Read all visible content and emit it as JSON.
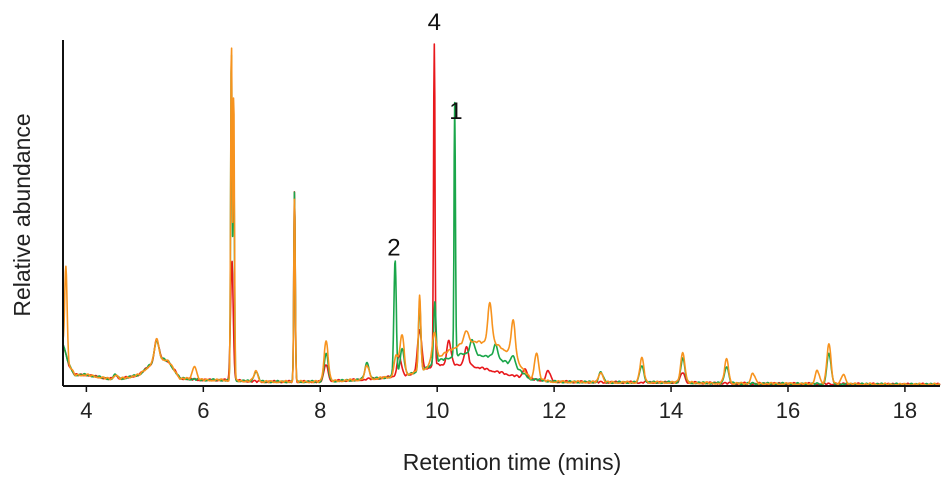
{
  "chart_data": {
    "type": "line",
    "xlabel": "Retention time (mins)",
    "ylabel": "Relative abundance",
    "xlim": [
      3.6,
      18.6
    ],
    "ylim": [
      0,
      100
    ],
    "x_ticks": [
      4,
      6,
      8,
      10,
      12,
      14,
      16,
      18
    ],
    "x_tick_labels": [
      "4",
      "6",
      "8",
      "10",
      "12",
      "14",
      "16",
      "18"
    ],
    "grid": false,
    "legend": "none",
    "baseline": [
      [
        3.6,
        12
      ],
      [
        3.7,
        6
      ],
      [
        3.8,
        3
      ],
      [
        4,
        3
      ],
      [
        4.5,
        1.5
      ],
      [
        4.9,
        3
      ],
      [
        5.1,
        6
      ],
      [
        5.25,
        8
      ],
      [
        5.4,
        7
      ],
      [
        5.6,
        2
      ],
      [
        6,
        1.5
      ],
      [
        6.3,
        1.5
      ],
      [
        7,
        1
      ],
      [
        8,
        1
      ],
      [
        8.6,
        1.5
      ],
      [
        9,
        2
      ],
      [
        9.5,
        3
      ],
      [
        10,
        6
      ],
      [
        10.5,
        6
      ],
      [
        11,
        4
      ],
      [
        11.5,
        2
      ],
      [
        12,
        1
      ],
      [
        13,
        0.8
      ],
      [
        14,
        0.8
      ],
      [
        15,
        0.5
      ],
      [
        16,
        0.4
      ],
      [
        17,
        0.3
      ],
      [
        18,
        0.2
      ],
      [
        18.6,
        0.2
      ]
    ],
    "hump": [
      [
        9.8,
        0
      ],
      [
        10.2,
        4
      ],
      [
        10.5,
        7
      ],
      [
        11,
        8
      ],
      [
        11.3,
        6
      ],
      [
        11.6,
        0
      ]
    ],
    "series": [
      {
        "color": "#e8181c",
        "peaks": [
          [
            4.5,
            1.5
          ],
          [
            5.2,
            6
          ],
          [
            6.48,
            22
          ],
          [
            6.5,
            18
          ],
          [
            7.56,
            56
          ],
          [
            8.1,
            5
          ],
          [
            9.35,
            6
          ],
          [
            9.7,
            12
          ],
          [
            9.95,
            100
          ],
          [
            10.2,
            7
          ],
          [
            10.5,
            5
          ],
          [
            11.5,
            3
          ],
          [
            11.9,
            3
          ],
          [
            14.2,
            3
          ]
        ]
      },
      {
        "color": "#1aa64a",
        "peaks": [
          [
            4.5,
            1.5
          ],
          [
            5.2,
            6
          ],
          [
            6.48,
            98
          ],
          [
            6.52,
            70
          ],
          [
            6.9,
            3
          ],
          [
            7.56,
            56
          ],
          [
            8.1,
            8
          ],
          [
            8.8,
            5
          ],
          [
            9.28,
            34
          ],
          [
            9.4,
            8
          ],
          [
            9.7,
            20
          ],
          [
            9.96,
            18
          ],
          [
            10.3,
            74
          ],
          [
            10.6,
            4
          ],
          [
            11.0,
            4
          ],
          [
            11.3,
            3
          ],
          [
            12.8,
            3
          ],
          [
            13.5,
            5
          ],
          [
            14.2,
            7
          ],
          [
            14.95,
            5
          ],
          [
            16.7,
            9
          ]
        ]
      },
      {
        "color": "#f7931e",
        "peaks": [
          [
            3.65,
            26
          ],
          [
            4.5,
            1.5
          ],
          [
            5.2,
            6
          ],
          [
            5.85,
            4
          ],
          [
            6.48,
            100
          ],
          [
            6.52,
            85
          ],
          [
            6.9,
            3
          ],
          [
            7.56,
            54
          ],
          [
            8.1,
            12
          ],
          [
            8.8,
            4
          ],
          [
            9.3,
            6
          ],
          [
            9.4,
            12
          ],
          [
            9.7,
            22
          ],
          [
            9.95,
            8
          ],
          [
            10.5,
            3
          ],
          [
            10.9,
            12
          ],
          [
            11.3,
            10
          ],
          [
            11.7,
            8
          ],
          [
            12.8,
            3
          ],
          [
            13.5,
            7
          ],
          [
            14.2,
            9
          ],
          [
            14.95,
            7
          ],
          [
            15.4,
            3
          ],
          [
            16.5,
            4
          ],
          [
            16.7,
            12
          ],
          [
            16.95,
            3
          ]
        ]
      }
    ],
    "annotations": [
      {
        "text": "4",
        "x": 9.95,
        "y": 100
      },
      {
        "text": "1",
        "x": 10.32,
        "y": 74
      },
      {
        "text": "2",
        "x": 9.26,
        "y": 34
      }
    ]
  }
}
